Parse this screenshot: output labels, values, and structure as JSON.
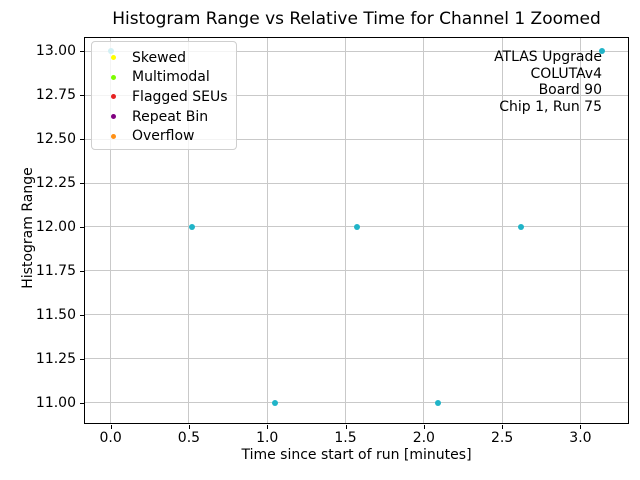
{
  "chart_data": {
    "type": "scatter",
    "title": "Histogram Range vs Relative Time for Channel 1 Zoomed",
    "xlabel": "Time since start of run [minutes]",
    "ylabel": "Histogram Range",
    "xlim": [
      -0.17,
      3.31
    ],
    "ylim": [
      10.88,
      13.08
    ],
    "grid": true,
    "grid_color": "#c9c9c9",
    "x_ticks": {
      "values": [
        0.0,
        0.5,
        1.0,
        1.5,
        2.0,
        2.5,
        3.0
      ],
      "labels": [
        "0.0",
        "0.5",
        "1.0",
        "1.5",
        "2.0",
        "2.5",
        "3.0"
      ]
    },
    "y_ticks": {
      "values": [
        11.0,
        11.25,
        11.5,
        11.75,
        12.0,
        12.25,
        12.5,
        12.75,
        13.0
      ],
      "labels": [
        "11.00",
        "11.25",
        "11.50",
        "11.75",
        "12.00",
        "12.25",
        "12.50",
        "12.75",
        "13.00"
      ]
    },
    "series": [
      {
        "color": "#20b4c8",
        "x": [
          0.0,
          0.52,
          1.05,
          1.57,
          2.09,
          2.62,
          3.14
        ],
        "y": [
          13,
          12,
          11,
          12,
          11,
          12,
          13
        ]
      }
    ],
    "legend_position": "upper left",
    "legend": [
      {
        "label": "Skewed",
        "color": "#ffff00"
      },
      {
        "label": "Multimodal",
        "color": "#7cfc00"
      },
      {
        "label": "Flagged SEUs",
        "color": "#e62222"
      },
      {
        "label": "Repeat Bin",
        "color": "#800080"
      },
      {
        "label": "Overflow",
        "color": "#ff9015"
      }
    ],
    "annotation": {
      "position": "upper right",
      "align": "right",
      "lines": [
        "ATLAS Upgrade",
        "COLUTAv4",
        "Board 90",
        "Chip 1, Run 75"
      ]
    }
  }
}
